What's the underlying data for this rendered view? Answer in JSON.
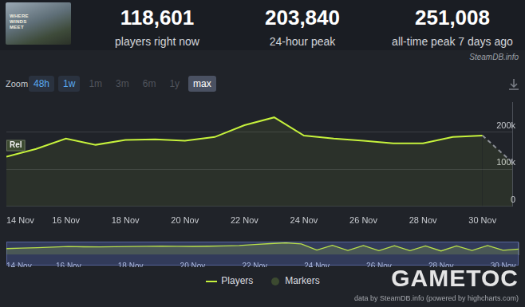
{
  "header": {
    "thumbnail_text": "WHERE WINDS MEET",
    "stats": [
      {
        "value": "118,601",
        "label": "players right now"
      },
      {
        "value": "203,840",
        "label": "24-hour peak"
      },
      {
        "value": "251,008",
        "label": "all-time peak 7 days ago"
      }
    ]
  },
  "source_badge": "SteamDB.info",
  "toolbar": {
    "zoom_label": "Zoom",
    "buttons": [
      "48h",
      "1w",
      "1m",
      "3m",
      "6m",
      "1y",
      "max"
    ],
    "available": [
      "48h",
      "1w",
      "max"
    ],
    "selected": "max"
  },
  "chart_data": [
    {
      "type": "line",
      "categories": [
        "14 Nov",
        null,
        "16 Nov",
        null,
        "18 Nov",
        null,
        "20 Nov",
        null,
        "22 Nov",
        null,
        "24 Nov",
        null,
        "26 Nov",
        null,
        "28 Nov",
        null,
        "30 Nov",
        null
      ],
      "series": [
        {
          "name": "Players",
          "type": "line",
          "color": "#c6f23c",
          "values": [
            134000,
            155000,
            183000,
            166000,
            179000,
            181000,
            177000,
            187000,
            219000,
            240000,
            191000,
            183000,
            177000,
            170000,
            170000,
            187000,
            191000,
            118601
          ]
        },
        {
          "name": "Markers",
          "type": "scatter",
          "color": "#3c4a30",
          "values": [
            164000,
            null,
            null,
            null,
            null,
            null,
            null,
            null,
            null,
            null,
            null,
            null,
            null,
            null,
            null,
            null,
            null,
            null
          ]
        }
      ],
      "annotations": [
        {
          "series": "Markers",
          "x": "14 Nov",
          "text": "Rel"
        }
      ],
      "ylim": [
        0,
        280000
      ],
      "yticks": [
        0,
        {
          "value": 100000,
          "label": "100k"
        },
        {
          "value": 200000,
          "label": "200k"
        }
      ],
      "grid": true,
      "legend": "bottom"
    },
    {
      "type": "line",
      "categories": [
        "14 Nov",
        null,
        null,
        null,
        "16 Nov",
        null,
        null,
        null,
        "18 Nov",
        null,
        null,
        null,
        "20 Nov",
        null,
        null,
        null,
        "22 Nov",
        null,
        null,
        null,
        "24 Nov",
        null,
        null,
        null,
        "26 Nov",
        null,
        null,
        null,
        "28 Nov",
        null,
        null,
        null,
        "30 Nov",
        null
      ],
      "values": [
        130000,
        140000,
        150000,
        160000,
        175000,
        168000,
        165000,
        170000,
        175000,
        178000,
        180000,
        178000,
        176000,
        180000,
        185000,
        195000,
        215000,
        235000,
        250000,
        230000,
        100000,
        200000,
        90000,
        195000,
        85000,
        190000,
        85000,
        185000,
        80000,
        185000,
        90000,
        195000,
        95000,
        118601
      ],
      "color": "#b9e04a",
      "ylim": [
        0,
        260000
      ],
      "grid": false,
      "tick_labels": "x"
    }
  ],
  "footer": "data by SteamDB.info (powered by highcharts.com)",
  "watermark": "GAMETOC"
}
